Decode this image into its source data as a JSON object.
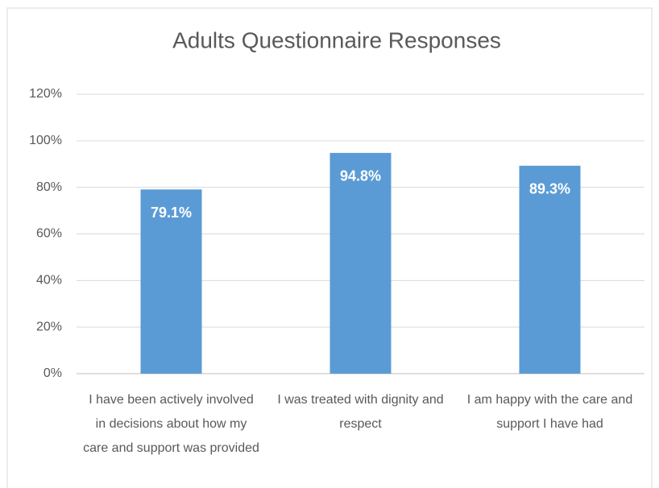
{
  "chart_data": {
    "type": "bar",
    "title": "Adults Questionnaire Responses",
    "categories": [
      "I have been actively involved in decisions about how my care and support was provided",
      "I was treated with dignity and respect",
      "I am happy with the care and support I have had"
    ],
    "values": [
      79.1,
      94.8,
      89.3
    ],
    "value_labels": [
      "79.1%",
      "94.8%",
      "89.3%"
    ],
    "color": "#5b9bd5",
    "ylim": [
      0,
      120
    ],
    "yticks": [
      {
        "value": 0,
        "label": "0%"
      },
      {
        "value": 20,
        "label": "20%"
      },
      {
        "value": 40,
        "label": "40%"
      },
      {
        "value": 60,
        "label": "60%"
      },
      {
        "value": 80,
        "label": "80%"
      },
      {
        "value": 100,
        "label": "100%"
      },
      {
        "value": 120,
        "label": "120%"
      }
    ],
    "grid": true
  }
}
